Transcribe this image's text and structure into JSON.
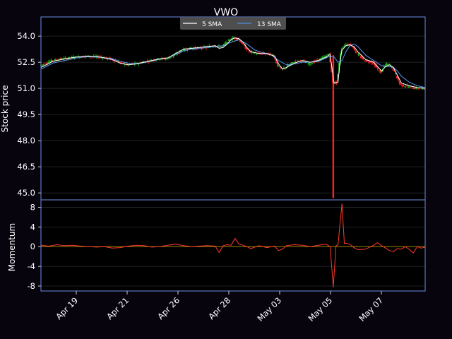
{
  "chart_data": {
    "type": "line",
    "title": "VWO",
    "background": "#07040e",
    "frame_color": "#6b8fe6",
    "grid": true,
    "x_ticks": [
      "Apr 19",
      "Apr 21",
      "Apr 26",
      "Apr 28",
      "May 03",
      "May 05",
      "May 07"
    ],
    "legend": {
      "placement": "top-center",
      "entries": [
        {
          "label": "5 SMA",
          "color": "#ffffff"
        },
        {
          "label": "13 SMA",
          "color": "#4f8fe0"
        }
      ]
    },
    "price_panel": {
      "ylabel": "Stock price",
      "ylim": [
        44.6,
        55.1
      ],
      "yticks": [
        "45.0",
        "46.5",
        "48.0",
        "49.5",
        "51.0",
        "52.5",
        "54.0"
      ],
      "ytick_values": [
        45.0,
        46.5,
        48.0,
        49.5,
        51.0,
        52.5,
        54.0
      ],
      "candle_up_color": "#18c018",
      "candle_down_color": "#ff2020",
      "price_path": [
        [
          0,
          52.3
        ],
        [
          3,
          52.6
        ],
        [
          6,
          52.7
        ],
        [
          9,
          52.8
        ],
        [
          12,
          52.85
        ],
        [
          15,
          52.8
        ],
        [
          18,
          52.7
        ],
        [
          20,
          52.5
        ],
        [
          22,
          52.35
        ],
        [
          24,
          52.4
        ],
        [
          26,
          52.5
        ],
        [
          28,
          52.6
        ],
        [
          30,
          52.7
        ],
        [
          32,
          52.7
        ],
        [
          34,
          52.9
        ],
        [
          36,
          53.2
        ],
        [
          38,
          53.3
        ],
        [
          40,
          53.3
        ],
        [
          42,
          53.35
        ],
        [
          44,
          53.45
        ],
        [
          46,
          53.4
        ],
        [
          47,
          53.6
        ],
        [
          48,
          53.8
        ],
        [
          49,
          53.9
        ],
        [
          50,
          53.85
        ],
        [
          51,
          53.6
        ],
        [
          52,
          53.3
        ],
        [
          53,
          53.1
        ],
        [
          55,
          53.0
        ],
        [
          57,
          53.0
        ],
        [
          59,
          52.9
        ],
        [
          60,
          52.3
        ],
        [
          61,
          52.1
        ],
        [
          62,
          52.2
        ],
        [
          64,
          52.5
        ],
        [
          66,
          52.6
        ],
        [
          68,
          52.4
        ],
        [
          70,
          52.6
        ],
        [
          72,
          52.8
        ],
        [
          73,
          53.0
        ],
        [
          74,
          51.3
        ],
        [
          75,
          51.35
        ],
        [
          76,
          53.2
        ],
        [
          77,
          53.5
        ],
        [
          78,
          53.55
        ],
        [
          79,
          53.4
        ],
        [
          80,
          53.0
        ],
        [
          82,
          52.6
        ],
        [
          84,
          52.5
        ],
        [
          85,
          52.2
        ],
        [
          86,
          51.9
        ],
        [
          87,
          52.3
        ],
        [
          88,
          52.4
        ],
        [
          89,
          52.2
        ],
        [
          90,
          51.7
        ],
        [
          91,
          51.2
        ],
        [
          93,
          51.1
        ],
        [
          95,
          51.0
        ],
        [
          97,
          51.0
        ]
      ],
      "sma5": [
        [
          0,
          52.2
        ],
        [
          3,
          52.55
        ],
        [
          6,
          52.7
        ],
        [
          9,
          52.8
        ],
        [
          12,
          52.85
        ],
        [
          15,
          52.8
        ],
        [
          18,
          52.65
        ],
        [
          20,
          52.45
        ],
        [
          22,
          52.35
        ],
        [
          24,
          52.4
        ],
        [
          26,
          52.5
        ],
        [
          28,
          52.6
        ],
        [
          30,
          52.7
        ],
        [
          32,
          52.75
        ],
        [
          34,
          53.0
        ],
        [
          36,
          53.25
        ],
        [
          38,
          53.3
        ],
        [
          40,
          53.35
        ],
        [
          42,
          53.4
        ],
        [
          44,
          53.45
        ],
        [
          45,
          53.3
        ],
        [
          46,
          53.35
        ],
        [
          47,
          53.55
        ],
        [
          48,
          53.8
        ],
        [
          49,
          53.9
        ],
        [
          50,
          53.85
        ],
        [
          51,
          53.65
        ],
        [
          52,
          53.35
        ],
        [
          53,
          53.1
        ],
        [
          55,
          53.0
        ],
        [
          57,
          53.0
        ],
        [
          59,
          52.85
        ],
        [
          60,
          52.4
        ],
        [
          61,
          52.1
        ],
        [
          62,
          52.2
        ],
        [
          64,
          52.45
        ],
        [
          66,
          52.6
        ],
        [
          68,
          52.5
        ],
        [
          70,
          52.6
        ],
        [
          72,
          52.8
        ],
        [
          73,
          52.95
        ],
        [
          74,
          51.3
        ],
        [
          75,
          51.35
        ],
        [
          75.5,
          52.5
        ],
        [
          76,
          53.2
        ],
        [
          77,
          53.45
        ],
        [
          78,
          53.5
        ],
        [
          79,
          53.4
        ],
        [
          80,
          53.1
        ],
        [
          82,
          52.65
        ],
        [
          84,
          52.5
        ],
        [
          85,
          52.25
        ],
        [
          86,
          52.0
        ],
        [
          87,
          52.25
        ],
        [
          88,
          52.35
        ],
        [
          89,
          52.2
        ],
        [
          90,
          51.75
        ],
        [
          91,
          51.3
        ],
        [
          93,
          51.15
        ],
        [
          95,
          51.05
        ],
        [
          97,
          51.0
        ]
      ],
      "sma13": [
        [
          0,
          52.1
        ],
        [
          3,
          52.45
        ],
        [
          6,
          52.6
        ],
        [
          9,
          52.75
        ],
        [
          12,
          52.82
        ],
        [
          15,
          52.78
        ],
        [
          18,
          52.7
        ],
        [
          20,
          52.55
        ],
        [
          22,
          52.45
        ],
        [
          24,
          52.42
        ],
        [
          26,
          52.48
        ],
        [
          28,
          52.58
        ],
        [
          30,
          52.68
        ],
        [
          32,
          52.75
        ],
        [
          34,
          52.95
        ],
        [
          36,
          53.15
        ],
        [
          38,
          53.25
        ],
        [
          40,
          53.3
        ],
        [
          42,
          53.35
        ],
        [
          44,
          53.4
        ],
        [
          46,
          53.45
        ],
        [
          48,
          53.65
        ],
        [
          50,
          53.8
        ],
        [
          52,
          53.55
        ],
        [
          54,
          53.2
        ],
        [
          56,
          53.05
        ],
        [
          58,
          52.95
        ],
        [
          60,
          52.6
        ],
        [
          62,
          52.35
        ],
        [
          64,
          52.4
        ],
        [
          66,
          52.5
        ],
        [
          68,
          52.5
        ],
        [
          70,
          52.55
        ],
        [
          72,
          52.75
        ],
        [
          73,
          52.85
        ],
        [
          74,
          52.8
        ],
        [
          75,
          52.5
        ],
        [
          76,
          52.6
        ],
        [
          77,
          53.1
        ],
        [
          78,
          53.45
        ],
        [
          79,
          53.55
        ],
        [
          80,
          53.4
        ],
        [
          82,
          52.9
        ],
        [
          84,
          52.6
        ],
        [
          86,
          52.3
        ],
        [
          88,
          52.25
        ],
        [
          89,
          52.2
        ],
        [
          90,
          52.0
        ],
        [
          91,
          51.7
        ],
        [
          93,
          51.35
        ],
        [
          95,
          51.15
        ],
        [
          97,
          51.05
        ]
      ],
      "spike": {
        "x": 73.8,
        "open": 52.9,
        "low": 44.7
      }
    },
    "momentum_panel": {
      "ylabel": "Momentum",
      "ylim": [
        -9,
        9.5
      ],
      "yticks": [
        "-8",
        "-4",
        "0",
        "4",
        "8"
      ],
      "ytick_values": [
        -8,
        -4,
        0,
        4,
        8
      ],
      "line_color": "#ff3a2a",
      "zero_line_color": "#c8a000",
      "values": [
        [
          0,
          0.3
        ],
        [
          2,
          0.1
        ],
        [
          4,
          0.4
        ],
        [
          6,
          0.2
        ],
        [
          8,
          0.3
        ],
        [
          10,
          0.1
        ],
        [
          12,
          0.0
        ],
        [
          14,
          -0.1
        ],
        [
          16,
          0.0
        ],
        [
          18,
          -0.3
        ],
        [
          20,
          -0.2
        ],
        [
          22,
          0.1
        ],
        [
          24,
          0.3
        ],
        [
          26,
          0.2
        ],
        [
          28,
          -0.1
        ],
        [
          30,
          0.0
        ],
        [
          32,
          0.3
        ],
        [
          34,
          0.5
        ],
        [
          36,
          0.2
        ],
        [
          38,
          0.0
        ],
        [
          40,
          0.1
        ],
        [
          42,
          0.2
        ],
        [
          44,
          0.1
        ],
        [
          45,
          -1.2
        ],
        [
          46,
          0.2
        ],
        [
          47,
          0.4
        ],
        [
          48,
          0.3
        ],
        [
          49,
          1.7
        ],
        [
          50,
          0.5
        ],
        [
          51,
          0.3
        ],
        [
          52,
          0.0
        ],
        [
          53,
          -0.4
        ],
        [
          55,
          0.2
        ],
        [
          57,
          -0.2
        ],
        [
          59,
          0.1
        ],
        [
          60,
          -0.8
        ],
        [
          61,
          -0.5
        ],
        [
          62,
          0.2
        ],
        [
          64,
          0.4
        ],
        [
          66,
          0.3
        ],
        [
          68,
          0.0
        ],
        [
          70,
          0.3
        ],
        [
          72,
          0.5
        ],
        [
          73,
          0.0
        ],
        [
          73.8,
          -8.2
        ],
        [
          74.5,
          0.2
        ],
        [
          75,
          0.4
        ],
        [
          76,
          8.7
        ],
        [
          76.6,
          0.6
        ],
        [
          77,
          0.7
        ],
        [
          78,
          0.5
        ],
        [
          79,
          -0.2
        ],
        [
          80,
          -0.6
        ],
        [
          82,
          -0.5
        ],
        [
          84,
          0.3
        ],
        [
          85,
          0.8
        ],
        [
          86,
          0.2
        ],
        [
          87,
          -0.3
        ],
        [
          88,
          -0.8
        ],
        [
          89,
          -1.0
        ],
        [
          90,
          -0.4
        ],
        [
          91,
          -0.5
        ],
        [
          92,
          0.0
        ],
        [
          93,
          -0.6
        ],
        [
          94,
          -1.3
        ],
        [
          95,
          0.0
        ],
        [
          96,
          -0.3
        ],
        [
          97,
          -0.1
        ]
      ]
    }
  }
}
